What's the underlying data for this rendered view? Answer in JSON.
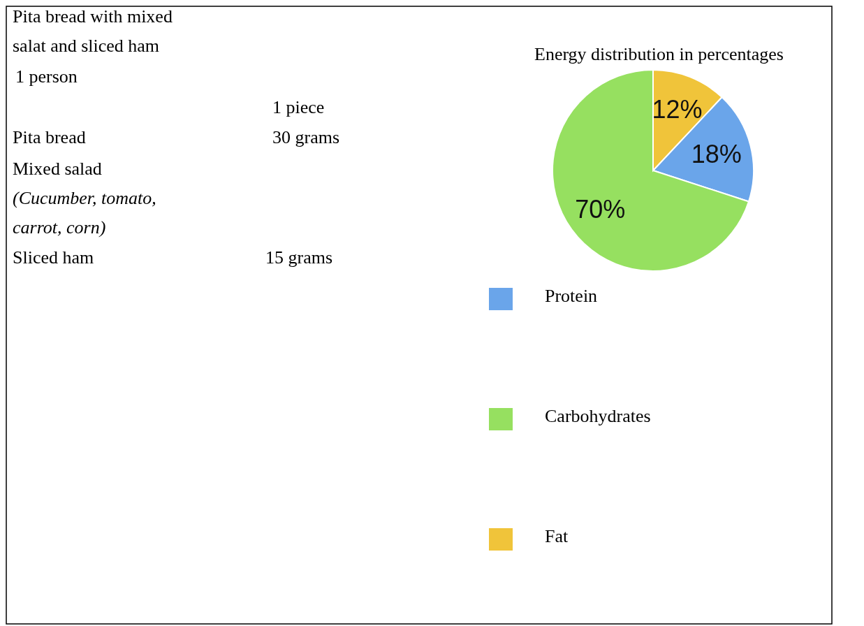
{
  "chart_data": [
    {
      "type": "other",
      "annotations": [
        "Pita bread  with  mixed salat and sliced ham",
        "1 person",
        "1 piece",
        "Pita bread",
        "30 grams",
        "Mixed salad",
        "(Cucumber, tomato, carrot, corn)",
        "Sliced ham",
        "15 grams"
      ]
    },
    {
      "type": "pie",
      "title": "Energy distribution in percentages",
      "categories": [
        "Protein",
        "Carbohydrates",
        "Fat"
      ],
      "values": [
        18,
        70,
        12
      ],
      "value_labels": [
        "18%",
        "70%",
        "12%"
      ],
      "colors": [
        "#6aa5ea",
        "#96e060",
        "#f0c43a"
      ],
      "legend": "bottom"
    }
  ]
}
